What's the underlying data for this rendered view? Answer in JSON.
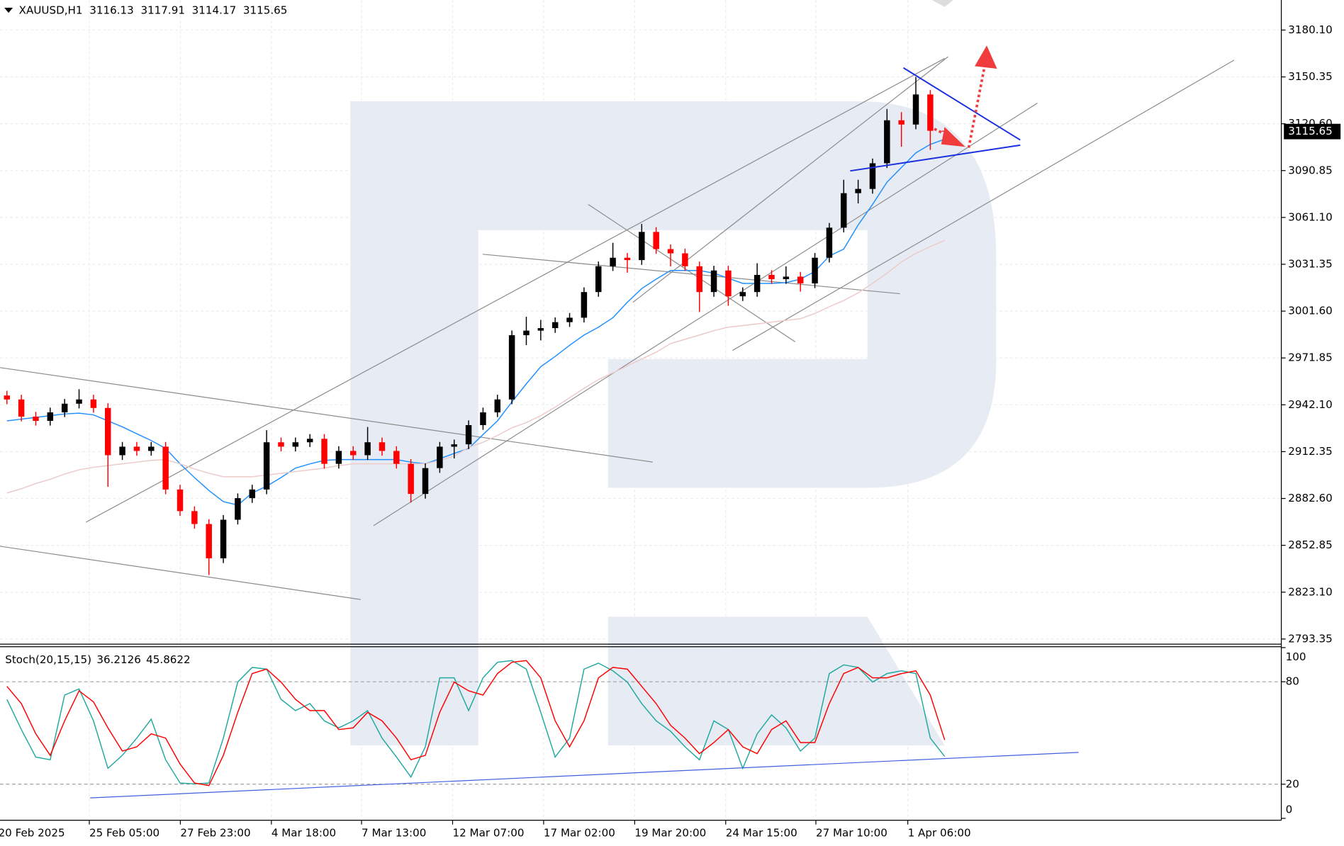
{
  "chart_data": [
    {
      "type": "candlestick",
      "title": "XAUUSD,H1",
      "open": [
        2948.0,
        2945.5,
        2934.6,
        2931.9,
        2937.3,
        2942.8,
        2945.5,
        2940.1,
        2910.1,
        2915.5,
        2912.8,
        2915.5,
        2888.3,
        2874.6,
        2866.4,
        2844.6,
        2869.1,
        2882.8,
        2888.3,
        2918.3,
        2915.5,
        2918.3,
        2920.5,
        2904.6,
        2912.8,
        2910.1,
        2918.3,
        2912.8,
        2904.6,
        2885.5,
        2901.9,
        2915.5,
        2917.0,
        2929.2,
        2937.3,
        2945.5,
        2986.3,
        2989.2,
        2990.8,
        2994.6,
        2997.4,
        3013.7,
        3030.1,
        3035.5,
        3034.0,
        3051.9,
        3041.0,
        3038.3,
        3030.1,
        3013.7,
        3027.4,
        3011.0,
        3013.7,
        3024.6,
        3021.9,
        3023.5,
        3019.2,
        3035.5,
        3054.6,
        3076.5,
        3079.2,
        3095.5,
        3122.8,
        3120.1,
        3139.2,
        3116.13
      ],
      "high": [
        2951.0,
        2948.5,
        2937.6,
        2940.3,
        2945.8,
        2952.0,
        2948.5,
        2943.1,
        2918.5,
        2918.5,
        2918.5,
        2918.5,
        2891.3,
        2877.6,
        2869.4,
        2872.1,
        2885.8,
        2891.3,
        2926.0,
        2921.3,
        2921.3,
        2923.5,
        2923.5,
        2915.8,
        2915.8,
        2928.0,
        2921.3,
        2915.8,
        2907.6,
        2904.9,
        2918.5,
        2920.0,
        2932.2,
        2940.3,
        2948.5,
        2989.3,
        2998.0,
        2996.0,
        2997.6,
        3000.4,
        3016.7,
        3033.1,
        3045.0,
        3038.5,
        3057.0,
        3054.9,
        3044.0,
        3041.3,
        3033.1,
        3030.4,
        3030.4,
        3016.7,
        3032.0,
        3027.6,
        3030.0,
        3026.5,
        3038.5,
        3057.6,
        3085.0,
        3085.0,
        3098.5,
        3130.0,
        3128.0,
        3150.3,
        3142.0,
        3117.91
      ],
      "low": [
        2942.5,
        2931.6,
        2928.9,
        2928.9,
        2934.3,
        2939.8,
        2937.1,
        2890.0,
        2907.1,
        2909.8,
        2909.8,
        2885.3,
        2871.6,
        2863.4,
        2834.0,
        2841.6,
        2866.1,
        2879.8,
        2885.3,
        2912.5,
        2912.5,
        2915.3,
        2901.6,
        2901.6,
        2907.1,
        2907.1,
        2909.8,
        2901.6,
        2880.0,
        2882.5,
        2898.9,
        2908.0,
        2914.0,
        2926.2,
        2934.3,
        2942.5,
        2980.0,
        2983.0,
        2987.8,
        2991.6,
        2994.4,
        3010.7,
        3027.1,
        3026.0,
        3031.0,
        3038.0,
        3030.0,
        3027.1,
        3001.0,
        3010.7,
        3005.0,
        3008.0,
        3010.7,
        3018.9,
        3018.9,
        3014.0,
        3016.2,
        3032.5,
        3051.6,
        3070.0,
        3076.2,
        3092.5,
        3106.0,
        3117.1,
        3104.0,
        3114.17
      ],
      "close": [
        2945.5,
        2934.6,
        2931.9,
        2937.3,
        2942.8,
        2945.5,
        2940.1,
        2910.1,
        2915.5,
        2912.8,
        2915.5,
        2888.3,
        2874.6,
        2866.4,
        2844.6,
        2869.1,
        2882.8,
        2888.3,
        2918.3,
        2915.5,
        2918.3,
        2920.5,
        2904.6,
        2912.8,
        2910.1,
        2918.3,
        2912.8,
        2904.6,
        2885.5,
        2901.9,
        2915.5,
        2917.0,
        2929.2,
        2937.3,
        2945.5,
        2986.3,
        2989.2,
        2990.8,
        2994.6,
        2997.4,
        3013.7,
        3030.1,
        3035.5,
        3034.0,
        3051.9,
        3041.0,
        3038.3,
        3030.1,
        3013.7,
        3027.4,
        3011.0,
        3013.7,
        3024.6,
        3021.9,
        3023.5,
        3019.2,
        3035.5,
        3054.6,
        3076.5,
        3079.2,
        3095.5,
        3122.8,
        3120.1,
        3139.2,
        3116.13,
        3115.65
      ],
      "up_color": "#000000",
      "down_color": "#ff0000",
      "overlays": [
        {
          "color": "#1e90ff",
          "values": [
            2931.9,
            2933.0,
            2934.1,
            2935.2,
            2936.3,
            2936.8,
            2935.7,
            2931.9,
            2928.1,
            2923.7,
            2919.4,
            2914.4,
            2904.6,
            2895.9,
            2887.7,
            2880.6,
            2878.4,
            2886.1,
            2890.4,
            2895.9,
            2901.9,
            2904.6,
            2906.8,
            2907.3,
            2907.3,
            2907.3,
            2907.3,
            2907.3,
            2905.7,
            2904.6,
            2907.9,
            2911.2,
            2914.4,
            2923.2,
            2931.9,
            2943.9,
            2955.4,
            2966.3,
            2972.8,
            2979.9,
            2986.4,
            2991.4,
            2997.4,
            3007.2,
            3015.9,
            3021.9,
            3027.4,
            3027.4,
            3027.4,
            3025.7,
            3022.5,
            3019.2,
            3019.2,
            3019.2,
            3019.7,
            3021.9,
            3026.8,
            3036.6,
            3041.0,
            3056.3,
            3069.4,
            3083.5,
            3092.8,
            3102.1,
            3107.5,
            3110.8
          ]
        },
        {
          "color": "#eccaca",
          "values": [
            2886.1,
            2888.8,
            2892.1,
            2894.8,
            2898.1,
            2900.8,
            2902.4,
            2903.5,
            2904.6,
            2905.7,
            2906.8,
            2907.3,
            2904.6,
            2901.4,
            2898.6,
            2896.4,
            2896.4,
            2896.4,
            2897.5,
            2898.6,
            2899.7,
            2900.8,
            2901.9,
            2903.5,
            2904.6,
            2904.6,
            2904.6,
            2904.6,
            2904.6,
            2904.6,
            2906.8,
            2909.5,
            2915.0,
            2918.3,
            2922.6,
            2927.5,
            2930.8,
            2935.2,
            2940.6,
            2946.6,
            2952.6,
            2958.1,
            2962.4,
            2966.8,
            2971.2,
            2975.5,
            2981.0,
            2983.7,
            2986.4,
            2989.2,
            2991.4,
            2992.4,
            2993.5,
            2994.6,
            2995.7,
            2996.8,
            3000.1,
            3004.4,
            3008.3,
            3013.2,
            3019.2,
            3025.7,
            3032.8,
            3038.3,
            3042.6,
            3046.5
          ]
        }
      ],
      "ylim": [
        2790.08,
        3199.19
      ],
      "yticks": [
        {
          "value": 3180.1,
          "label": "3180.10"
        },
        3150.35,
        {
          "value": 3120.6,
          "label": "3120.60"
        },
        3090.85,
        {
          "value": 3061.1,
          "label": "3061.10"
        },
        3031.35,
        {
          "value": 3001.6,
          "label": "3001.60"
        },
        2971.85,
        {
          "value": 2942.1,
          "label": "2942.10"
        },
        2912.35,
        {
          "value": 2882.6,
          "label": "2882.60"
        },
        2852.85,
        {
          "value": 2823.1,
          "label": "2823.10"
        },
        2793.35
      ],
      "xlim": [
        -0.48,
        88.33
      ],
      "xticks": [
        {
          "value": -0.6,
          "label": "20 Feb 2025"
        },
        {
          "value": 5.71,
          "label": "25 Feb 05:00"
        },
        {
          "value": 12.02,
          "label": "27 Feb 23:00"
        },
        {
          "value": 18.33,
          "label": "4 Mar 18:00"
        },
        {
          "value": 24.58,
          "label": "7 Mar 13:00"
        },
        {
          "value": 30.89,
          "label": "12 Mar 07:00"
        },
        {
          "value": 37.2,
          "label": "17 Mar 02:00"
        },
        {
          "value": 43.51,
          "label": "19 Mar 20:00"
        },
        {
          "value": 49.82,
          "label": "24 Mar 15:00"
        },
        {
          "value": 56.07,
          "label": "27 Mar 10:00"
        },
        {
          "value": 62.44,
          "label": "1 Apr 06:00"
        }
      ],
      "grid": true
    },
    {
      "type": "stochastic",
      "title": "Stoch(20,15,15)",
      "series": [
        {
          "color": "#20a8a0",
          "values": [
            69.7,
            52.0,
            35.9,
            34.3,
            72.2,
            75.8,
            57.1,
            29.3,
            36.9,
            47.0,
            58.1,
            34.3,
            20.7,
            20.2,
            20.7,
            47.0,
            79.8,
            88.4,
            87.4,
            69.7,
            63.1,
            67.2,
            57.1,
            53.0,
            57.1,
            63.1,
            47.0,
            35.9,
            24.2,
            41.9,
            82.3,
            82.3,
            63.1,
            82.3,
            91.4,
            92.4,
            87.4,
            62.1,
            35.9,
            47.0,
            87.4,
            90.9,
            86.4,
            79.8,
            67.2,
            57.1,
            51.0,
            41.9,
            34.3,
            57.1,
            52.0,
            29.3,
            49.5,
            60.6,
            53.0,
            39.4,
            47.0,
            84.8,
            89.9,
            88.4,
            79.8,
            84.8,
            86.4,
            84.8,
            47.0,
            36.2126
          ]
        },
        {
          "color": "#ff0000",
          "values": [
            77.3,
            67.2,
            49.5,
            36.9,
            57.1,
            74.7,
            68.2,
            53.0,
            39.4,
            41.9,
            49.5,
            47.0,
            31.8,
            20.7,
            19.2,
            36.9,
            62.1,
            84.8,
            87.4,
            79.8,
            69.7,
            63.1,
            63.1,
            52.0,
            53.0,
            62.1,
            57.1,
            47.0,
            34.3,
            36.9,
            62.1,
            79.8,
            74.7,
            72.2,
            84.8,
            91.4,
            92.4,
            82.3,
            57.1,
            41.9,
            57.1,
            82.3,
            88.4,
            87.4,
            77.3,
            67.2,
            54.5,
            47.0,
            37.9,
            44.4,
            52.0,
            41.9,
            37.9,
            52.0,
            57.1,
            44.4,
            44.4,
            67.2,
            84.8,
            88.4,
            82.3,
            82.3,
            84.8,
            86.4,
            72.2,
            45.8622
          ]
        }
      ],
      "ylim": [
        -1.1,
        100
      ],
      "yticks": [
        0,
        20,
        80,
        100
      ],
      "levels": [
        20,
        80
      ]
    }
  ]
}
